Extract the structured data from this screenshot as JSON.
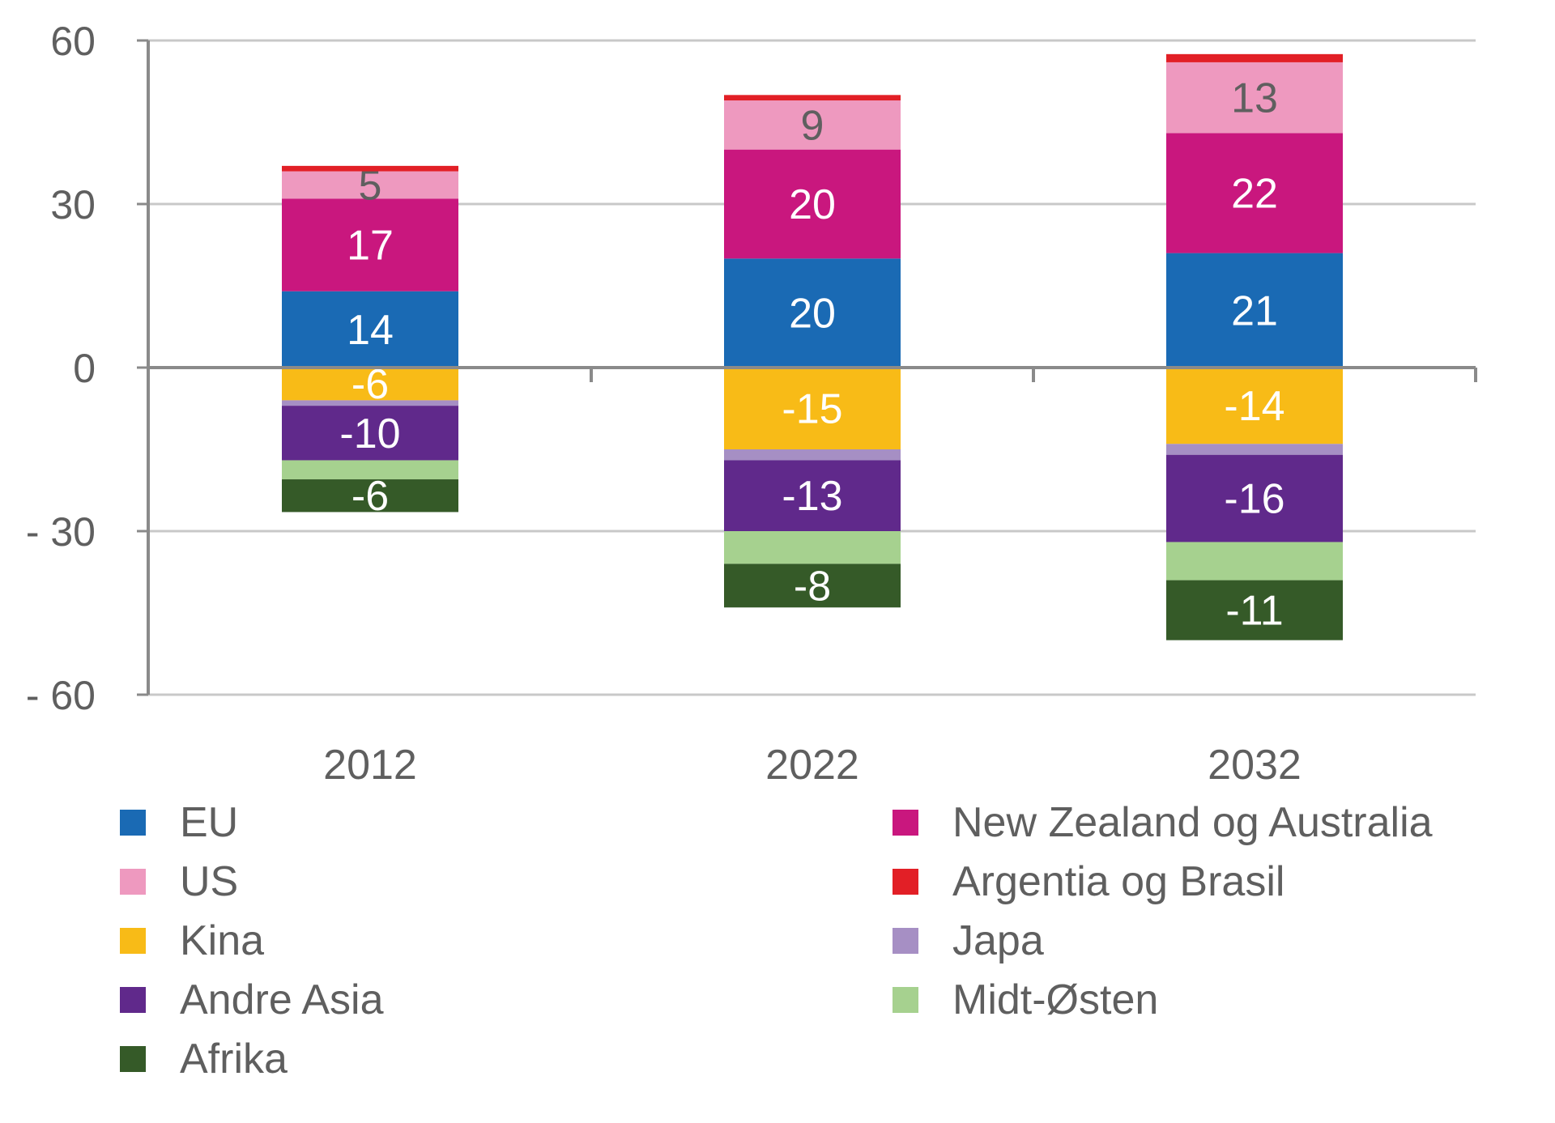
{
  "chart_data": {
    "type": "bar",
    "stacked": true,
    "categories": [
      "2012",
      "2022",
      "2032"
    ],
    "ylim": [
      -60,
      60
    ],
    "yticks": [
      60,
      30,
      0,
      -30,
      -60
    ],
    "ytick_labels": [
      "60",
      "30",
      "0",
      "- 30",
      "- 60"
    ],
    "grid": true,
    "legend_position": "bottom",
    "series": [
      {
        "name": "EU",
        "color": "#1a6ab4",
        "values": [
          14,
          20,
          21
        ],
        "labels": [
          "14",
          "20",
          "21"
        ],
        "label_color": "#ffffff"
      },
      {
        "name": "New Zealand og Australia",
        "color": "#c9177e",
        "values": [
          17,
          20,
          22
        ],
        "labels": [
          "17",
          "20",
          "22"
        ],
        "label_color": "#ffffff"
      },
      {
        "name": "US",
        "color": "#ee99bf",
        "values": [
          5,
          9,
          13
        ],
        "labels": [
          "5",
          "9",
          "13"
        ],
        "label_color": "#5f5f5f"
      },
      {
        "name": "Argentia og Brasil",
        "color": "#e21f26",
        "values": [
          1,
          1,
          1.5
        ],
        "labels": [
          "",
          "",
          ""
        ],
        "label_color": "#ffffff"
      },
      {
        "name": "Kina",
        "color": "#f8bb17",
        "values": [
          -6,
          -15,
          -14
        ],
        "labels": [
          "-6",
          "-15",
          "-14"
        ],
        "label_color": "#ffffff"
      },
      {
        "name": "Japa",
        "color": "#a68fc4",
        "values": [
          -1,
          -2,
          -2
        ],
        "labels": [
          "",
          "",
          ""
        ],
        "label_color": "#ffffff"
      },
      {
        "name": "Andre Asia",
        "color": "#60298b",
        "values": [
          -10,
          -13,
          -16
        ],
        "labels": [
          "-10",
          "-13",
          "-16"
        ],
        "label_color": "#ffffff"
      },
      {
        "name": "Midt-Østen",
        "color": "#a6d18f",
        "values": [
          -3.5,
          -6,
          -7
        ],
        "labels": [
          "",
          "",
          ""
        ],
        "label_color": "#ffffff"
      },
      {
        "name": "Afrika",
        "color": "#355a28",
        "values": [
          -6,
          -8,
          -11
        ],
        "labels": [
          "-6",
          "-8",
          "-11"
        ],
        "label_color": "#ffffff"
      }
    ],
    "legend_order": [
      "EU",
      "US",
      "Kina",
      "Andre Asia",
      "Afrika",
      "New Zealand og Australia",
      "Argentia og Brasil",
      "Japa",
      "Midt-Østen"
    ]
  }
}
